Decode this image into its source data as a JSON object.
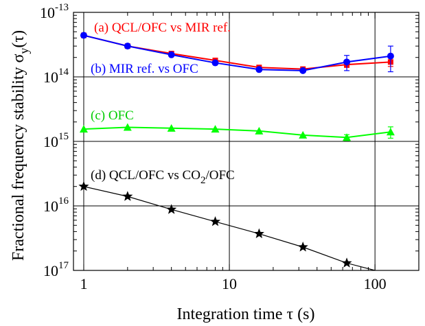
{
  "chart_data": {
    "type": "scatter",
    "x_scale": "log",
    "y_scale": "log",
    "xlim": [
      0.85,
      200
    ],
    "ylim": [
      1e-17,
      1e-13
    ],
    "grid": true,
    "legend": "none",
    "xlabel": "Integration time τ (s)",
    "ylabel": {
      "main": "Fractional frequency stability σ",
      "sub": "y",
      "tail": "(τ)"
    },
    "x_ticks": [
      {
        "value": 1,
        "label": "1"
      },
      {
        "value": 10,
        "label": "10"
      },
      {
        "value": 100,
        "label": "100"
      }
    ],
    "y_ticks": [
      {
        "value": 1e-13,
        "base": "10",
        "exp": "-13"
      },
      {
        "value": 1e-14,
        "base": "10",
        "exp": "14"
      },
      {
        "value": 1e-15,
        "base": "10",
        "exp": "15"
      },
      {
        "value": 1e-16,
        "base": "10",
        "exp": "16"
      },
      {
        "value": 1e-17,
        "base": "10",
        "exp": "17"
      }
    ],
    "series": [
      {
        "name": "(a) QCL/OFC vs MIR ref.",
        "color": "#ff0000",
        "marker": "square",
        "x": [
          1,
          2,
          4,
          8,
          16,
          32,
          64,
          128
        ],
        "y": [
          4.4e-14,
          3e-14,
          2.3e-14,
          1.8e-14,
          1.4e-14,
          1.32e-14,
          1.55e-14,
          1.7e-14
        ],
        "err": [
          0,
          0,
          0,
          0,
          0,
          0,
          1.5e-15,
          2.5e-15
        ]
      },
      {
        "name": "(b) MIR ref. vs OFC",
        "color": "#0000ff",
        "marker": "circle",
        "x": [
          1,
          2,
          4,
          8,
          16,
          32,
          64,
          128
        ],
        "y": [
          4.4e-14,
          3e-14,
          2.2e-14,
          1.65e-14,
          1.3e-14,
          1.25e-14,
          1.7e-14,
          2.1e-14
        ],
        "err": [
          0,
          0,
          0,
          0,
          0,
          0,
          4.5e-15,
          9e-15
        ]
      },
      {
        "name": "(c) OFC",
        "color": "#00ff00",
        "marker": "triangle",
        "x": [
          1,
          2,
          4,
          8,
          16,
          32,
          64,
          128
        ],
        "y": [
          1.55e-15,
          1.65e-15,
          1.6e-15,
          1.55e-15,
          1.45e-15,
          1.25e-15,
          1.15e-15,
          1.4e-15
        ],
        "err": [
          0,
          0,
          0,
          0,
          0,
          0,
          1.2e-16,
          2.8e-16
        ]
      },
      {
        "name": "(d) QCL/OFC vs CO",
        "name_sub": "2",
        "name_tail": "/OFC",
        "color": "#000000",
        "marker": "star",
        "x": [
          1,
          2,
          4,
          8,
          16,
          32,
          64,
          100
        ],
        "y": [
          2e-16,
          1.4e-16,
          8.8e-17,
          5.7e-17,
          3.7e-17,
          2.3e-17,
          1.3e-17,
          1e-17
        ],
        "err": [
          0,
          0,
          0,
          0,
          0,
          0,
          0,
          0
        ],
        "markers_n": 7
      }
    ]
  }
}
